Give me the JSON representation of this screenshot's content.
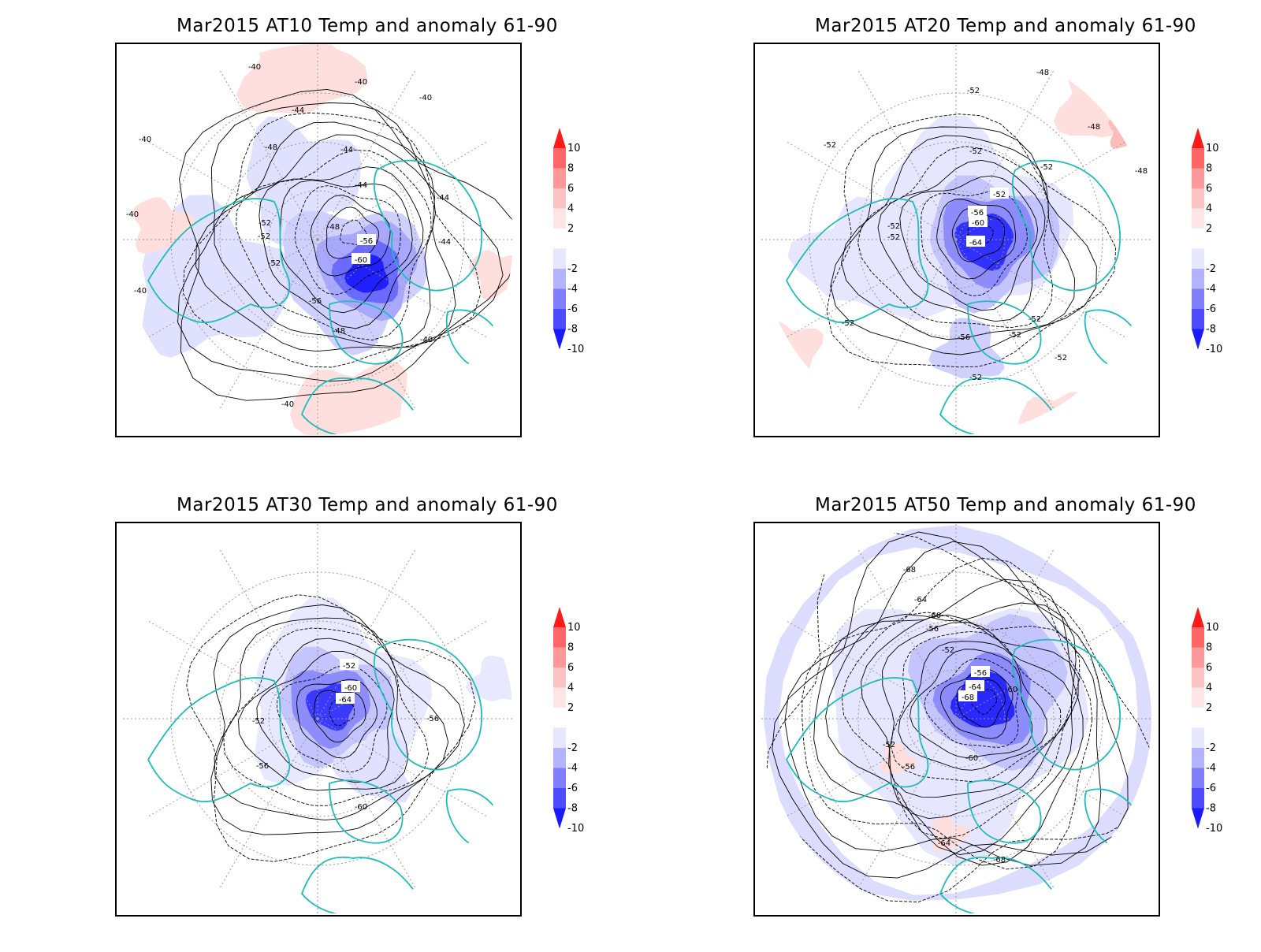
{
  "panels": [
    {
      "title": "Mar2015 AT10 Temp and anomaly 61-90",
      "contour_labels": [
        "-40",
        "-40",
        "-40",
        "-44",
        "-44",
        "-44",
        "-44",
        "-48",
        "-48",
        "-48",
        "-52",
        "-52",
        "-52",
        "-56",
        "-56",
        "-60",
        "-40",
        "-40",
        "-40",
        "-40",
        "-40",
        "-44"
      ]
    },
    {
      "title": "Mar2015 AT20 Temp and anomaly 61-90",
      "contour_labels": [
        "-48",
        "-52",
        "-52",
        "-48",
        "-52",
        "-52",
        "-52",
        "-56",
        "-60",
        "-64",
        "-52",
        "-52",
        "-52",
        "-56",
        "-52",
        "-52",
        "-52",
        "-52",
        "-48"
      ]
    },
    {
      "title": "Mar2015 AT30 Temp and anomaly 61-90",
      "contour_labels": [
        "-52",
        "-60",
        "-64",
        "-52",
        "-56",
        "-56",
        "-60"
      ]
    },
    {
      "title": "Mar2015 AT50 Temp and anomaly 61-90",
      "contour_labels": [
        "-68",
        "-64",
        "-60",
        "-56",
        "-52",
        "-56",
        "-64",
        "-68",
        "-60",
        "-52",
        "-56",
        "-64",
        "-68",
        "-60"
      ]
    }
  ],
  "colorbar": {
    "labels": [
      "10",
      "8",
      "6",
      "4",
      "2",
      "-2",
      "-4",
      "-6",
      "-8",
      "-10"
    ],
    "colors": [
      "#ff1a1a",
      "#ff6666",
      "#ff9999",
      "#ffc2c2",
      "#ffe6e6",
      "#ffffff",
      "#e6e6ff",
      "#b3b3ff",
      "#8080ff",
      "#4d4dff",
      "#1a1aff"
    ]
  },
  "colors": {
    "coastline": "#1fbcbc",
    "contour": "#000000"
  }
}
